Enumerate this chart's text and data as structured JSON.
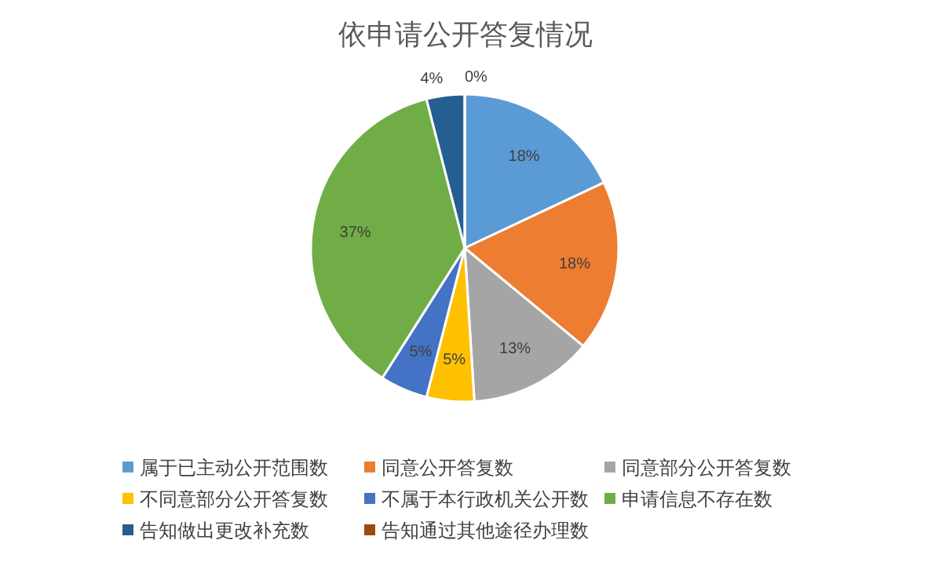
{
  "chart_data": {
    "type": "pie",
    "title": "依申请公开答复情况",
    "categories": [
      "属于已主动公开范围数",
      "同意公开答复数",
      "同意部分公开答复数",
      "不同意部分公开答复数",
      "不属于本行政机关公开数",
      "申请信息不存在数",
      "告知做出更改补充数",
      "告知通过其他途径办理数"
    ],
    "values": [
      18,
      18,
      13,
      5,
      5,
      37,
      4,
      0
    ],
    "colors": [
      "#5b9bd5",
      "#ed7d31",
      "#a5a5a5",
      "#ffc000",
      "#4472c4",
      "#70ad47",
      "#255e91",
      "#9e480e"
    ],
    "value_labels": [
      "18%",
      "18%",
      "13%",
      "5%",
      "5%",
      "37%",
      "4%",
      "0%"
    ],
    "legend": "bottom"
  }
}
